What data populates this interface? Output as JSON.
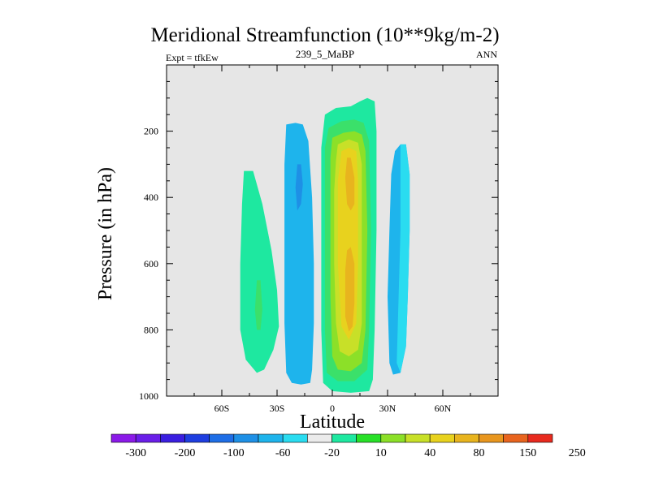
{
  "header": {
    "title": "Meridional Streamfunction (10**9kg/m-2)",
    "left_subtitle": "Expt = tfkEw",
    "center_subtitle": "239_5_MaBP",
    "right_subtitle": "ANN"
  },
  "chart_data": {
    "type": "contour",
    "title": "Meridional Streamfunction (10**9kg/m-2)",
    "xlabel": "Latitude",
    "ylabel": "Pressure (in hPa)",
    "xlim": [
      -90,
      90
    ],
    "ylim": [
      1000,
      0
    ],
    "x_ticks": [
      {
        "value": -60,
        "label": "60S"
      },
      {
        "value": -30,
        "label": "30S"
      },
      {
        "value": 0,
        "label": "0"
      },
      {
        "value": 30,
        "label": "30N"
      },
      {
        "value": 60,
        "label": "60N"
      }
    ],
    "y_ticks": [
      {
        "value": 200,
        "label": "200"
      },
      {
        "value": 400,
        "label": "400"
      },
      {
        "value": 600,
        "label": "600"
      },
      {
        "value": 800,
        "label": "800"
      },
      {
        "value": 1000,
        "label": "1000"
      }
    ],
    "background_color": "#e6e6e6",
    "colorbar": {
      "labels": [
        "-300",
        "-200",
        "-100",
        "-60",
        "-20",
        "10",
        "40",
        "80",
        "150",
        "250"
      ],
      "colors": [
        "#8b1ae8",
        "#6a1ee8",
        "#3a1ee0",
        "#1e3ee0",
        "#1e6ee6",
        "#1e90e6",
        "#1eb4ec",
        "#2adcf0",
        "#ebebeb",
        "#1ee8a0",
        "#28e028",
        "#8ce028",
        "#c8e028",
        "#e8d21e",
        "#e8b41e",
        "#e8961e",
        "#e8641e",
        "#e82a1e"
      ]
    },
    "regions": [
      {
        "name": "SH outer cell",
        "value_range": "10 to 40",
        "color": "#1ee8a0",
        "outline": [
          [
            -48,
            320
          ],
          [
            -43,
            320
          ],
          [
            -38,
            420
          ],
          [
            -33,
            560
          ],
          [
            -30,
            680
          ],
          [
            -29,
            790
          ],
          [
            -32,
            860
          ],
          [
            -37,
            920
          ],
          [
            -41,
            930
          ],
          [
            -47,
            890
          ],
          [
            -50,
            800
          ],
          [
            -50,
            600
          ],
          [
            -49,
            420
          ]
        ]
      },
      {
        "name": "SH outer cell core",
        "value_range": "40 to 80",
        "color": "#3be06a",
        "outline": [
          [
            -41,
            650
          ],
          [
            -39,
            650
          ],
          [
            -38,
            740
          ],
          [
            -39,
            800
          ],
          [
            -41,
            800
          ],
          [
            -42,
            740
          ]
        ]
      },
      {
        "name": "SH Hadley cell",
        "value_range": "-60 to -20",
        "color": "#1eb4ec",
        "outline": [
          [
            -25,
            180
          ],
          [
            -20,
            175
          ],
          [
            -16,
            180
          ],
          [
            -13,
            230
          ],
          [
            -11,
            400
          ],
          [
            -10,
            600
          ],
          [
            -10,
            780
          ],
          [
            -11,
            920
          ],
          [
            -12,
            960
          ],
          [
            -17,
            965
          ],
          [
            -22,
            960
          ],
          [
            -25,
            930
          ],
          [
            -26,
            780
          ],
          [
            -26,
            520
          ],
          [
            -26,
            300
          ]
        ]
      },
      {
        "name": "SH Hadley cell core",
        "value_range": "-100 to -60",
        "color": "#1e90e6",
        "outline": [
          [
            -19,
            300
          ],
          [
            -17,
            300
          ],
          [
            -16,
            360
          ],
          [
            -17,
            420
          ],
          [
            -19,
            440
          ],
          [
            -20,
            370
          ]
        ]
      },
      {
        "name": "NH outer cell",
        "value_range": "-60 to -20",
        "color": "#1eb4ec",
        "outline": [
          [
            37,
            240
          ],
          [
            40,
            240
          ],
          [
            42,
            330
          ],
          [
            42,
            500
          ],
          [
            41,
            700
          ],
          [
            40,
            850
          ],
          [
            37,
            930
          ],
          [
            33,
            935
          ],
          [
            31,
            900
          ],
          [
            30,
            700
          ],
          [
            31,
            500
          ],
          [
            32,
            330
          ],
          [
            34,
            260
          ]
        ]
      },
      {
        "name": "NH outer cell edge",
        "value_range": "-20 to -10",
        "color": "#2adcf0",
        "outline": [
          [
            37,
            240
          ],
          [
            40,
            240
          ],
          [
            42,
            330
          ],
          [
            42,
            500
          ],
          [
            41,
            700
          ],
          [
            40,
            850
          ],
          [
            37,
            930
          ],
          [
            35,
            900
          ],
          [
            36,
            700
          ],
          [
            37,
            500
          ],
          [
            37,
            330
          ]
        ]
      },
      {
        "name": "Hadley cell 10",
        "value_range": "10 to 40",
        "color": "#1ee8a0",
        "outline": [
          [
            -4,
            150
          ],
          [
            2,
            130
          ],
          [
            10,
            125
          ],
          [
            15,
            110
          ],
          [
            19,
            100
          ],
          [
            23,
            110
          ],
          [
            24,
            200
          ],
          [
            24,
            500
          ],
          [
            23,
            800
          ],
          [
            22,
            950
          ],
          [
            20,
            985
          ],
          [
            10,
            990
          ],
          [
            0,
            985
          ],
          [
            -5,
            960
          ],
          [
            -6,
            800
          ],
          [
            -6,
            500
          ],
          [
            -6,
            250
          ]
        ]
      },
      {
        "name": "Hadley cell 40",
        "value_range": "40 to 80",
        "color": "#3be06a",
        "outline": [
          [
            -2,
            190
          ],
          [
            5,
            170
          ],
          [
            12,
            165
          ],
          [
            17,
            175
          ],
          [
            20,
            230
          ],
          [
            21,
            500
          ],
          [
            20,
            800
          ],
          [
            19,
            920
          ],
          [
            12,
            955
          ],
          [
            3,
            955
          ],
          [
            -3,
            930
          ],
          [
            -4,
            800
          ],
          [
            -4,
            400
          ],
          [
            -4,
            250
          ]
        ]
      },
      {
        "name": "Hadley cell 80",
        "value_range": "80 to 150",
        "color": "#8ce028",
        "outline": [
          [
            0,
            220
          ],
          [
            6,
            205
          ],
          [
            12,
            200
          ],
          [
            16,
            210
          ],
          [
            18,
            260
          ],
          [
            19,
            500
          ],
          [
            18,
            800
          ],
          [
            16,
            900
          ],
          [
            10,
            925
          ],
          [
            3,
            920
          ],
          [
            0,
            880
          ],
          [
            -1,
            700
          ],
          [
            -1,
            400
          ],
          [
            -1,
            280
          ]
        ]
      },
      {
        "name": "Hadley cell 150",
        "value_range": "150 to 250",
        "color": "#c8e028",
        "outline": [
          [
            3,
            240
          ],
          [
            9,
            225
          ],
          [
            14,
            235
          ],
          [
            16,
            300
          ],
          [
            16,
            500
          ],
          [
            16,
            780
          ],
          [
            14,
            860
          ],
          [
            9,
            880
          ],
          [
            4,
            865
          ],
          [
            2,
            780
          ],
          [
            1,
            600
          ],
          [
            1,
            380
          ],
          [
            2,
            290
          ]
        ]
      },
      {
        "name": "Hadley cell 250",
        "value_range": "250 to 300",
        "color": "#e8d21e",
        "outline": [
          [
            5,
            260
          ],
          [
            9,
            250
          ],
          [
            13,
            260
          ],
          [
            14,
            350
          ],
          [
            14,
            600
          ],
          [
            13,
            780
          ],
          [
            9,
            830
          ],
          [
            5,
            790
          ],
          [
            3,
            600
          ],
          [
            3,
            350
          ]
        ]
      },
      {
        "name": "Hadley core upper",
        "value_range": ">300",
        "color": "#e8b41e",
        "outline": [
          [
            8,
            280
          ],
          [
            10,
            280
          ],
          [
            12,
            340
          ],
          [
            12,
            420
          ],
          [
            10,
            440
          ],
          [
            8,
            420
          ],
          [
            7,
            340
          ]
        ]
      },
      {
        "name": "Hadley core lower",
        "value_range": ">300",
        "color": "#e8b41e",
        "outline": [
          [
            8,
            560
          ],
          [
            10,
            550
          ],
          [
            12,
            600
          ],
          [
            12,
            720
          ],
          [
            11,
            790
          ],
          [
            9,
            805
          ],
          [
            7,
            760
          ],
          [
            7,
            620
          ]
        ]
      }
    ]
  }
}
